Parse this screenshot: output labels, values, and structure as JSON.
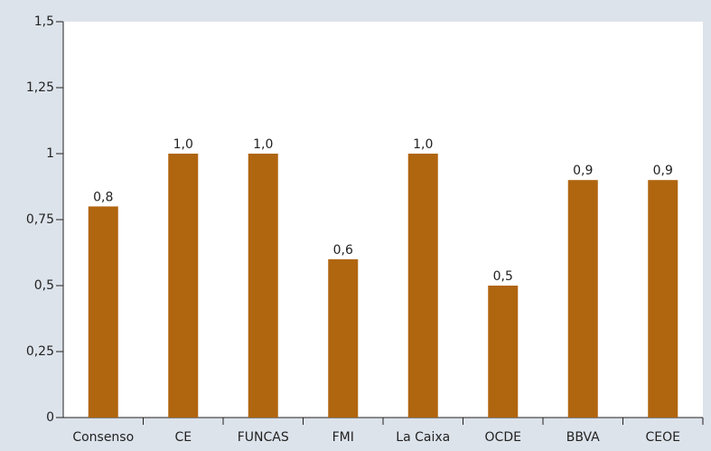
{
  "chart_data": {
    "type": "bar",
    "categories": [
      "Consenso",
      "CE",
      "FUNCAS",
      "FMI",
      "La Caixa",
      "OCDE",
      "BBVA",
      "CEOE"
    ],
    "values": [
      0.8,
      1.0,
      1.0,
      0.6,
      1.0,
      0.5,
      0.9,
      0.9
    ],
    "value_labels": [
      "0,8",
      "1,0",
      "1,0",
      "0,6",
      "1,0",
      "0,5",
      "0,9",
      "0,9"
    ],
    "color": "#b0650f",
    "ylim": [
      0,
      1.5
    ],
    "yticks": [
      0,
      {
        "value": 0.25,
        "label": "0,25"
      },
      {
        "value": 0.5,
        "label": "0,5"
      },
      {
        "value": 0.75,
        "label": "0,75"
      },
      1,
      {
        "value": 1.25,
        "label": "1,25"
      },
      {
        "value": 1.5,
        "label": "1,5"
      }
    ],
    "grid": false
  }
}
